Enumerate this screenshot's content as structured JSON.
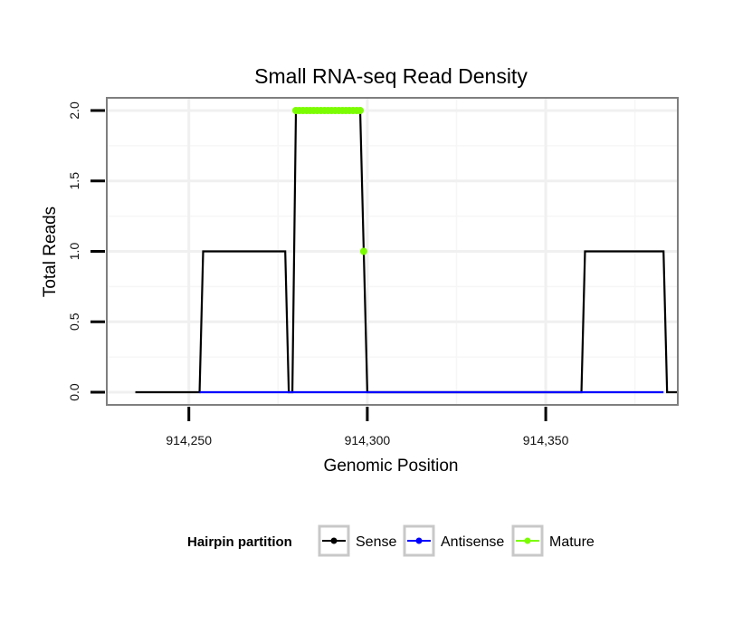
{
  "chart_data": {
    "type": "line",
    "title": "Small RNA-seq Read Density",
    "xlabel": "Genomic Position",
    "ylabel": "Total Reads",
    "xlim": [
      914227,
      914387
    ],
    "ylim": [
      -0.09,
      2.09
    ],
    "x_ticks": [
      914250,
      914300,
      914350
    ],
    "x_tick_labels": [
      "914,250",
      "914,300",
      "914,350"
    ],
    "y_ticks": [
      0,
      0.5,
      1,
      1.5,
      2
    ],
    "y_tick_labels": [
      "0.0",
      "0.5",
      "1.0",
      "1.5",
      "2.0"
    ],
    "grid": true,
    "legend": {
      "title": "Hairpin partition",
      "position": "bottom",
      "entries": [
        {
          "name": "Sense",
          "color": "#000000"
        },
        {
          "name": "Antisense",
          "color": "#0000ff"
        },
        {
          "name": "Mature",
          "color": "#7cfc00"
        }
      ]
    },
    "series": [
      {
        "name": "Sense",
        "color": "#000000",
        "x": [
          914235,
          914253,
          914254,
          914277,
          914278,
          914279,
          914280,
          914298,
          914300,
          914360,
          914361,
          914383,
          914384,
          914387
        ],
        "y": [
          0,
          0,
          1,
          1,
          0,
          0,
          2,
          2,
          0,
          0,
          1,
          1,
          0,
          0
        ]
      },
      {
        "name": "Antisense",
        "color": "#0000ff",
        "x": [
          914253,
          914300,
          914360,
          914383
        ],
        "y": [
          0,
          0,
          0,
          0
        ]
      },
      {
        "name": "Mature",
        "color": "#7cfc00",
        "points_x": [
          914280,
          914281,
          914282,
          914283,
          914284,
          914285,
          914286,
          914287,
          914288,
          914289,
          914290,
          914291,
          914292,
          914293,
          914294,
          914295,
          914296,
          914297,
          914298,
          914299
        ],
        "points_y": [
          2,
          2,
          2,
          2,
          2,
          2,
          2,
          2,
          2,
          2,
          2,
          2,
          2,
          2,
          2,
          2,
          2,
          2,
          2,
          1
        ]
      }
    ]
  }
}
